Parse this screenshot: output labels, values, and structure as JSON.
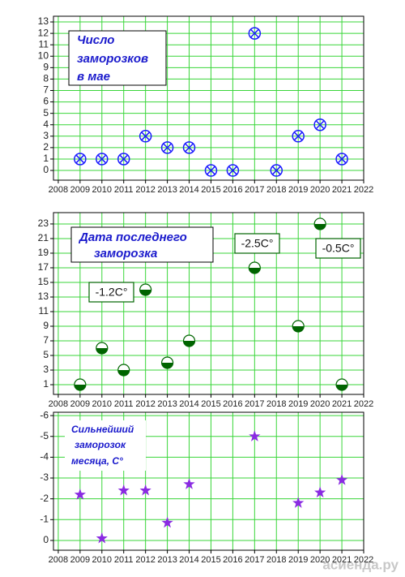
{
  "chart_data": [
    {
      "type": "scatter",
      "title": [
        "Число",
        "заморозков",
        "в мае"
      ],
      "x": [
        2009,
        2010,
        2011,
        2012,
        2013,
        2014,
        2015,
        2016,
        2017,
        2018,
        2019,
        2020,
        2021
      ],
      "values": [
        1,
        1,
        1,
        3,
        2,
        2,
        0,
        0,
        12,
        0,
        3,
        4,
        1
      ],
      "marker": "circle-x",
      "color": "#1a1aff",
      "xlim": [
        2007.78,
        2022
      ],
      "xticks": [
        2008,
        2009,
        2010,
        2011,
        2012,
        2013,
        2014,
        2015,
        2016,
        2017,
        2018,
        2019,
        2020,
        2021,
        2022
      ],
      "ylim": [
        -0.85,
        13.5
      ],
      "yticks": [
        0,
        1,
        2,
        3,
        4,
        5,
        6,
        7,
        8,
        9,
        10,
        11,
        12,
        13
      ],
      "grid": true
    },
    {
      "type": "scatter",
      "title": [
        "Дата последнего",
        "заморозка"
      ],
      "x": [
        2009,
        2010,
        2011,
        2012,
        2013,
        2014,
        2017,
        2019,
        2020,
        2021
      ],
      "values": [
        1,
        6,
        3,
        14,
        4,
        7,
        17,
        9,
        23,
        1
      ],
      "marker": "half-circle",
      "color": "#006400",
      "annotations": [
        "-1.2C°",
        "-2.5C°",
        "-0.5C°"
      ],
      "xlim": [
        2007.78,
        2022
      ],
      "xticks": [
        2008,
        2009,
        2010,
        2011,
        2012,
        2013,
        2014,
        2015,
        2016,
        2017,
        2018,
        2019,
        2020,
        2021,
        2022
      ],
      "ylim": [
        -0.33,
        24.55
      ],
      "yticks": [
        1,
        3,
        5,
        7,
        9,
        11,
        13,
        15,
        17,
        19,
        21,
        23
      ],
      "grid": true
    },
    {
      "type": "scatter",
      "title": [
        "Сильнейший",
        "заморозок",
        "месяца, С°"
      ],
      "x": [
        2009,
        2010,
        2011,
        2012,
        2013,
        2014,
        2017,
        2019,
        2020,
        2021
      ],
      "values": [
        -2.2,
        -0.1,
        -2.4,
        -2.4,
        -0.85,
        -2.7,
        -5.0,
        -1.8,
        -2.3,
        -2.9
      ],
      "marker": "star",
      "color": "#8a2be2",
      "xlim": [
        2007.78,
        2022
      ],
      "xticks": [
        2008,
        2009,
        2010,
        2011,
        2012,
        2013,
        2014,
        2015,
        2016,
        2017,
        2018,
        2019,
        2020,
        2021,
        2022
      ],
      "ylim": [
        0.47,
        -6.16
      ],
      "yticks": [
        0,
        -1,
        -2,
        -3,
        -4,
        -5,
        -6
      ],
      "grid": true
    }
  ],
  "watermark": "асиенда.ру"
}
